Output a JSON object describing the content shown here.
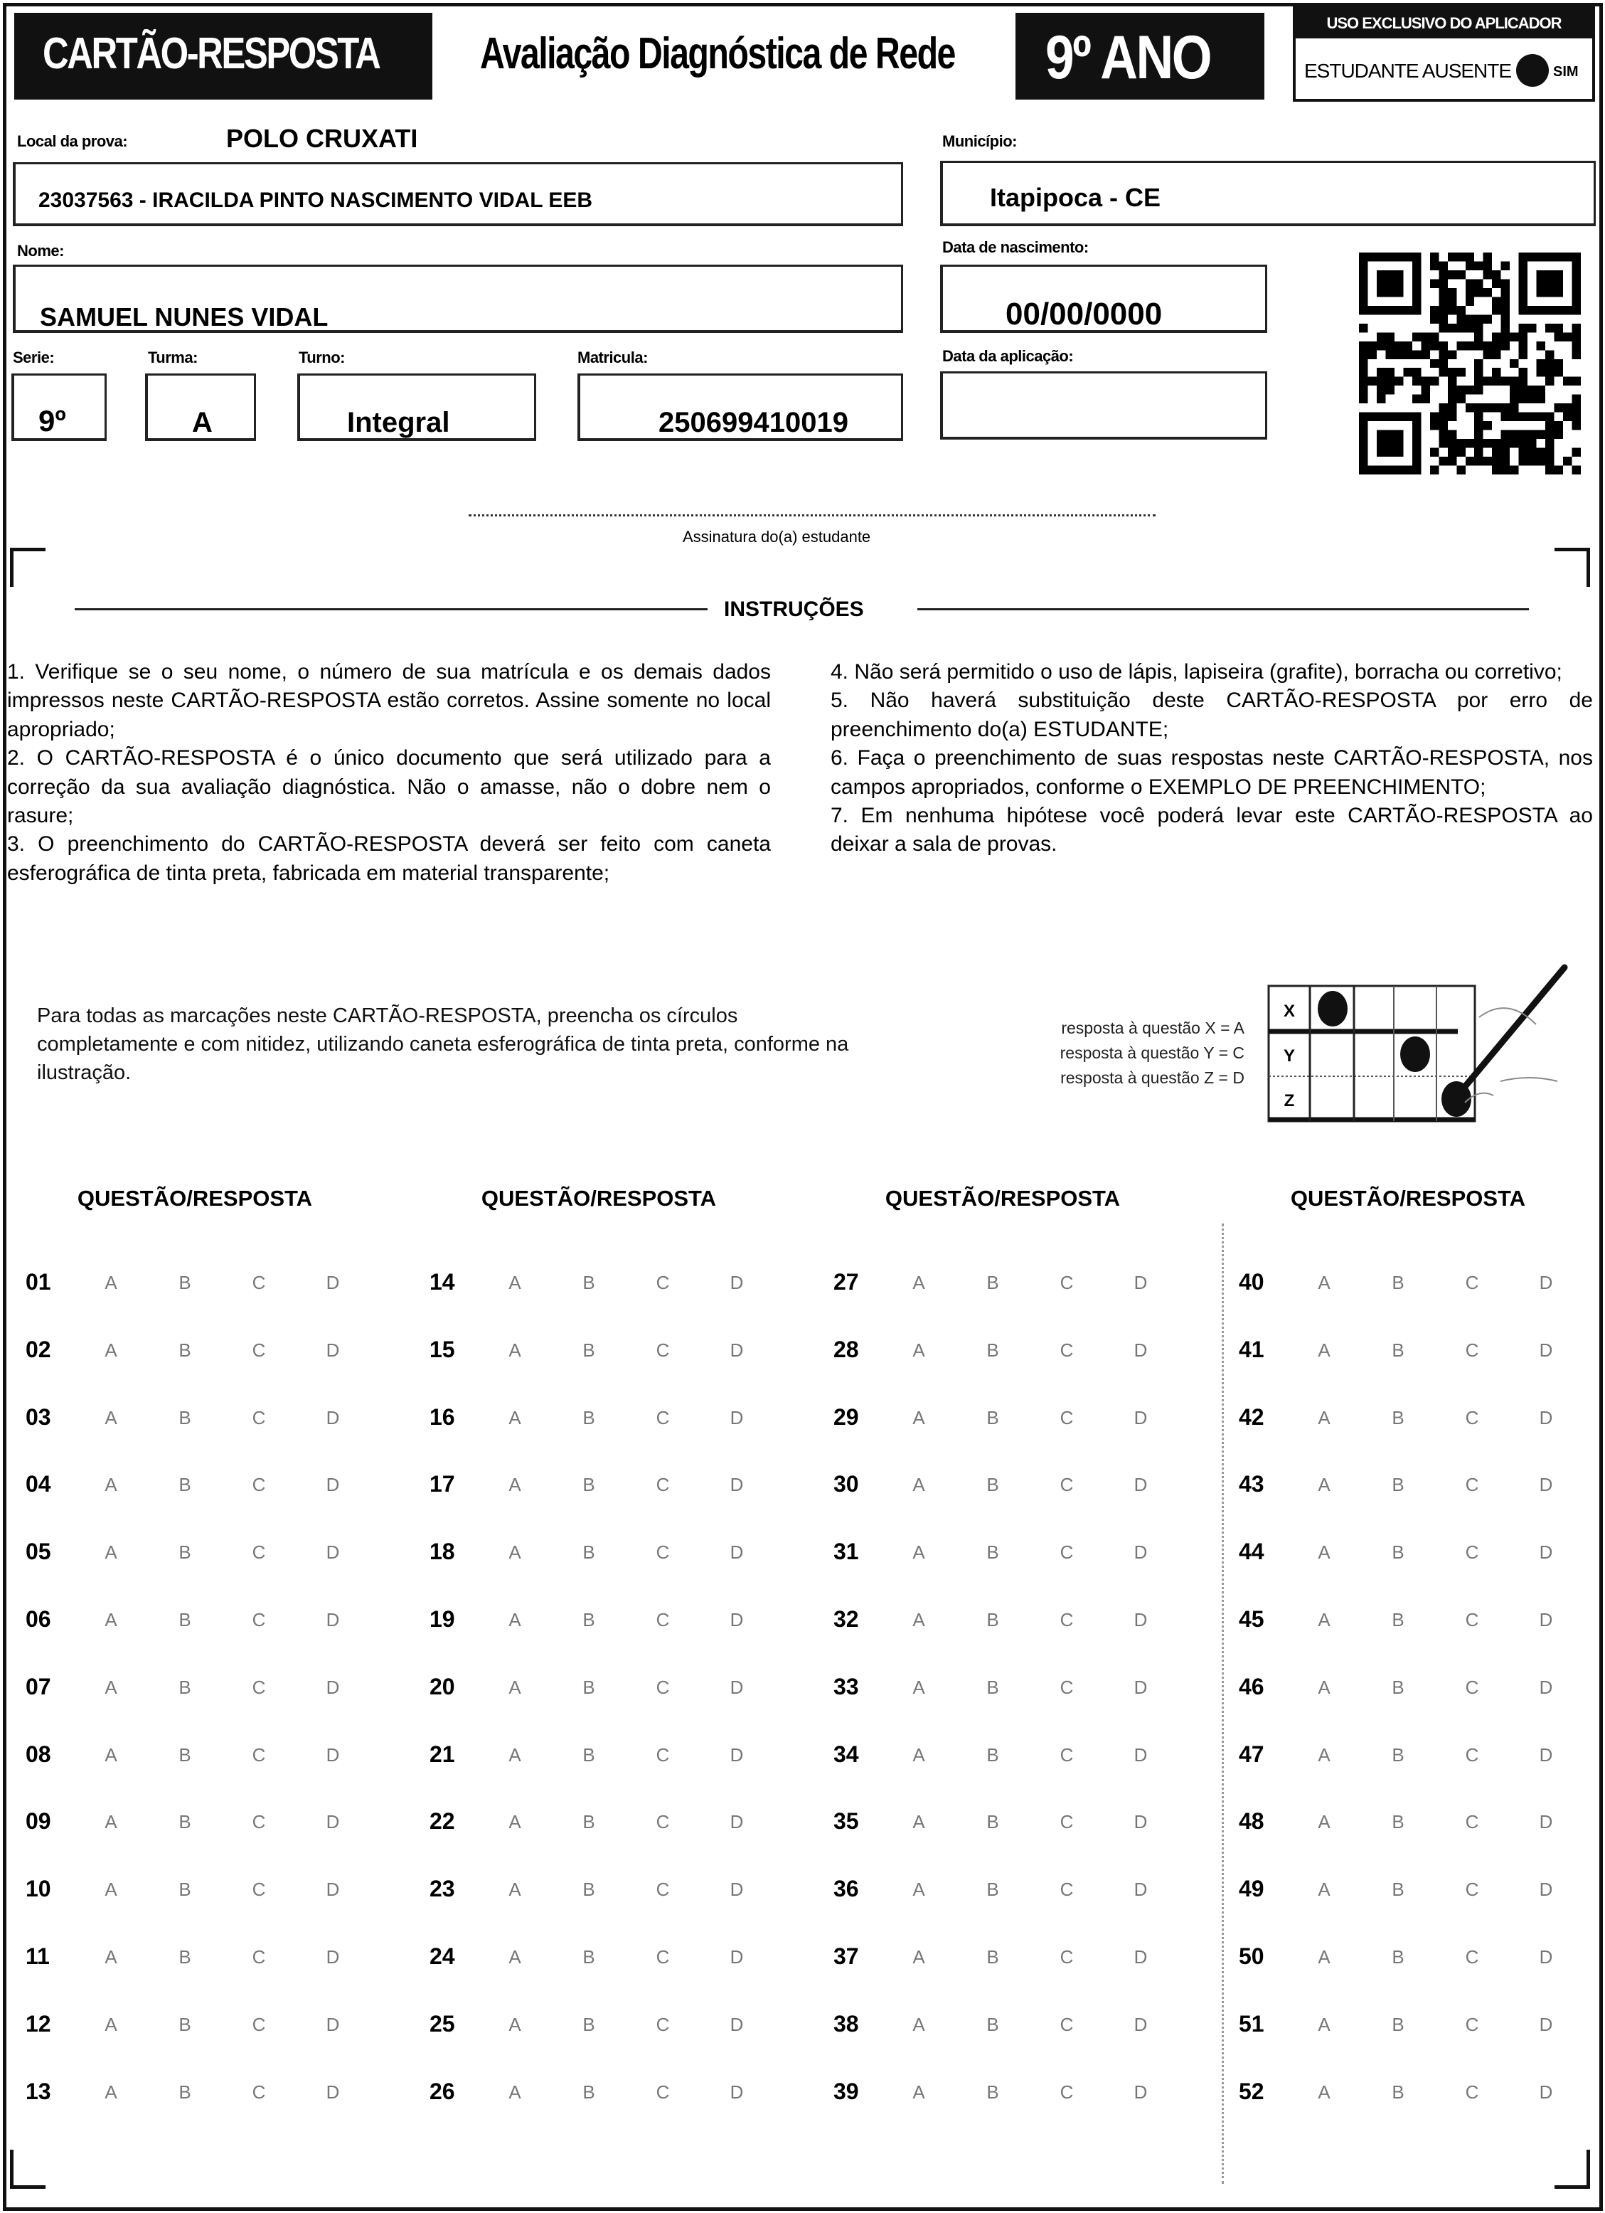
{
  "header": {
    "card_title": "CARTÃO-RESPOSTA",
    "exam_title": "Avaliação Diagnóstica de Rede",
    "grade": "9º ANO",
    "applicator": {
      "title": "USO EXCLUSIVO DO APLICADOR",
      "absent_label": "ESTUDANTE AUSENTE",
      "yes_label": "SIM"
    }
  },
  "fields": {
    "local_label": "Local da prova:",
    "local_value": "POLO CRUXATI",
    "school": "23037563 - IRACILDA PINTO NASCIMENTO VIDAL EEB",
    "municipio_label": "Município:",
    "municipio_value": "Itapipoca - CE",
    "nome_label": "Nome:",
    "nome_value": "SAMUEL NUNES VIDAL",
    "nascimento_label": "Data de nascimento:",
    "nascimento_value": "00/00/0000",
    "serie_label": "Serie:",
    "serie_value": "9º",
    "turma_label": "Turma:",
    "turma_value": "A",
    "turno_label": "Turno:",
    "turno_value": "Integral",
    "matricula_label": "Matricula:",
    "matricula_value": "250699410019",
    "aplicacao_label": "Data da aplicação:",
    "aplicacao_value": ""
  },
  "signature_label": "Assinatura do(a) estudante",
  "instructions": {
    "title": "INSTRUÇÕES",
    "left": "1. Verifique se o seu nome, o número de sua matrícula e os demais dados impressos neste CARTÃO-RESPOSTA estão corretos. Assine somente no local apropriado;\n2. O CARTÃO-RESPOSTA é o único documento que será utilizado para a correção da sua avaliação diagnóstica. Não o amasse, não o dobre nem o rasure;\n3. O preenchimento do CARTÃO-RESPOSTA deverá ser feito com caneta esferográfica de tinta preta, fabricada em material transparente;",
    "right": "4. Não será permitido o uso de lápis, lapiseira (grafite), borracha ou corretivo;\n5. Não haverá substituição deste CARTÃO-RESPOSTA por erro de preenchimento do(a) ESTUDANTE;\n6. Faça o preenchimento de suas respostas neste CARTÃO-RESPOSTA, nos campos apropriados, conforme o EXEMPLO DE PREENCHIMENTO;\n7. Em nenhuma hipótese você poderá levar este CARTÃO-RESPOSTA ao deixar a sala de provas."
  },
  "fill_instructions": "Para todas as marcações neste CARTÃO-RESPOSTA, preencha os círculos completamente e com nitidez, utilizando caneta esferográfica de tinta preta, conforme na ilustração.",
  "example": {
    "lines": [
      "resposta à questão X = A",
      "resposta à questão Y = C",
      "resposta à questão Z = D"
    ],
    "rows": [
      {
        "label": "X",
        "filled": "A"
      },
      {
        "label": "Y",
        "filled": "C"
      },
      {
        "label": "Z",
        "filled": "D"
      }
    ]
  },
  "answers": {
    "column_header": "QUESTÃO/RESPOSTA",
    "options": [
      "A",
      "B",
      "C",
      "D"
    ],
    "questions": [
      "01",
      "02",
      "03",
      "04",
      "05",
      "06",
      "07",
      "08",
      "09",
      "10",
      "11",
      "12",
      "13",
      "14",
      "15",
      "16",
      "17",
      "18",
      "19",
      "20",
      "21",
      "22",
      "23",
      "24",
      "25",
      "26",
      "27",
      "28",
      "29",
      "30",
      "31",
      "32",
      "33",
      "34",
      "35",
      "36",
      "37",
      "38",
      "39",
      "40",
      "41",
      "42",
      "43",
      "44",
      "45",
      "46",
      "47",
      "48",
      "49",
      "50",
      "51",
      "52"
    ]
  }
}
